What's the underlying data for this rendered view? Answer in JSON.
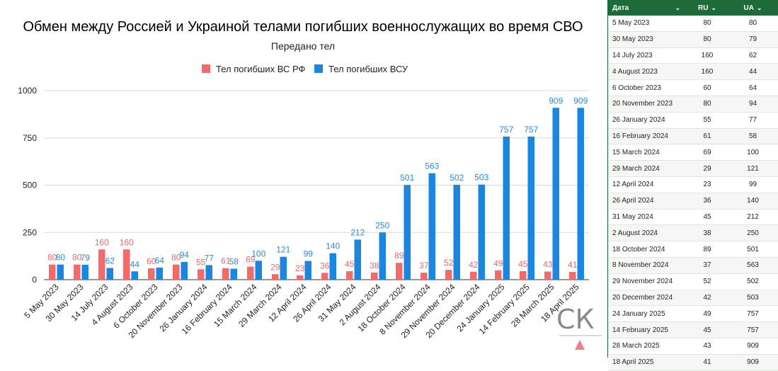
{
  "chart_data": {
    "type": "bar",
    "title": "Обмен между Россией и Украиной телами погибших военнослужащих во время СВО",
    "subtitle": "Передано тел",
    "categories": [
      "5 May 2023",
      "30 May 2023",
      "14 July 2023",
      "4 August 2023",
      "6 October 2023",
      "20 November 2023",
      "26 January 2024",
      "16 February 2024",
      "15 March 2024",
      "29 March 2024",
      "12 April 2024",
      "26 April 2024",
      "31 May 2024",
      "2 August 2024",
      "18 October 2024",
      "8 November 2024",
      "29 November 2024",
      "20 December 2024",
      "24 January 2025",
      "14 February 2025",
      "28 March 2025",
      "18 April 2025"
    ],
    "series": [
      {
        "name": "Тел погибших ВС  РФ",
        "color": "#f26b6b",
        "label_color": "#e86a6a",
        "values": [
          80,
          80,
          160,
          160,
          60,
          80,
          55,
          61,
          69,
          29,
          23,
          36,
          45,
          38,
          89,
          37,
          52,
          42,
          49,
          45,
          43,
          41
        ]
      },
      {
        "name": "Тел погибших ВСУ",
        "color": "#1a86e0",
        "label_color": "#2a8ad6",
        "values": [
          80,
          79,
          62,
          44,
          64,
          94,
          77,
          58,
          100,
          121,
          99,
          140,
          212,
          250,
          501,
          563,
          502,
          503,
          757,
          757,
          909,
          909
        ]
      }
    ],
    "yticks": [
      "0",
      "250",
      "500",
      "750",
      "1000"
    ],
    "ylim": [
      0,
      1000
    ],
    "grid": true,
    "legend_position": "top"
  },
  "logo": {
    "text": "СК",
    "accent": "#f08080"
  },
  "table": {
    "header_color": "#1e6b3a",
    "headers": {
      "date": "Дата",
      "ru": "RU",
      "ua": "UA"
    },
    "chevron": "⌄",
    "rows": [
      {
        "date": "5 May 2023",
        "ru": "80",
        "ua": "80"
      },
      {
        "date": "30 May 2023",
        "ru": "80",
        "ua": "79"
      },
      {
        "date": "14 July 2023",
        "ru": "160",
        "ua": "62"
      },
      {
        "date": "4 August 2023",
        "ru": "160",
        "ua": "44"
      },
      {
        "date": "6 October 2023",
        "ru": "60",
        "ua": "64"
      },
      {
        "date": "20 November 2023",
        "ru": "80",
        "ua": "94"
      },
      {
        "date": "26 January 2024",
        "ru": "55",
        "ua": "77"
      },
      {
        "date": "16 February 2024",
        "ru": "61",
        "ua": "58"
      },
      {
        "date": "15 March 2024",
        "ru": "69",
        "ua": "100"
      },
      {
        "date": "29 March 2024",
        "ru": "29",
        "ua": "121"
      },
      {
        "date": "12 April 2024",
        "ru": "23",
        "ua": "99"
      },
      {
        "date": "26 April 2024",
        "ru": "36",
        "ua": "140"
      },
      {
        "date": "31 May 2024",
        "ru": "45",
        "ua": "212"
      },
      {
        "date": "2 August 2024",
        "ru": "38",
        "ua": "250"
      },
      {
        "date": "18 October 2024",
        "ru": "89",
        "ua": "501"
      },
      {
        "date": "8 November 2024",
        "ru": "37",
        "ua": "563"
      },
      {
        "date": "29 November 2024",
        "ru": "52",
        "ua": "502"
      },
      {
        "date": "20 December 2024",
        "ru": "42",
        "ua": "503"
      },
      {
        "date": "24 January 2025",
        "ru": "49",
        "ua": "757"
      },
      {
        "date": "14 February 2025",
        "ru": "45",
        "ua": "757"
      },
      {
        "date": "28 March 2025",
        "ru": "43",
        "ua": "909"
      },
      {
        "date": "18 April 2025",
        "ru": "41",
        "ua": "909"
      }
    ]
  }
}
